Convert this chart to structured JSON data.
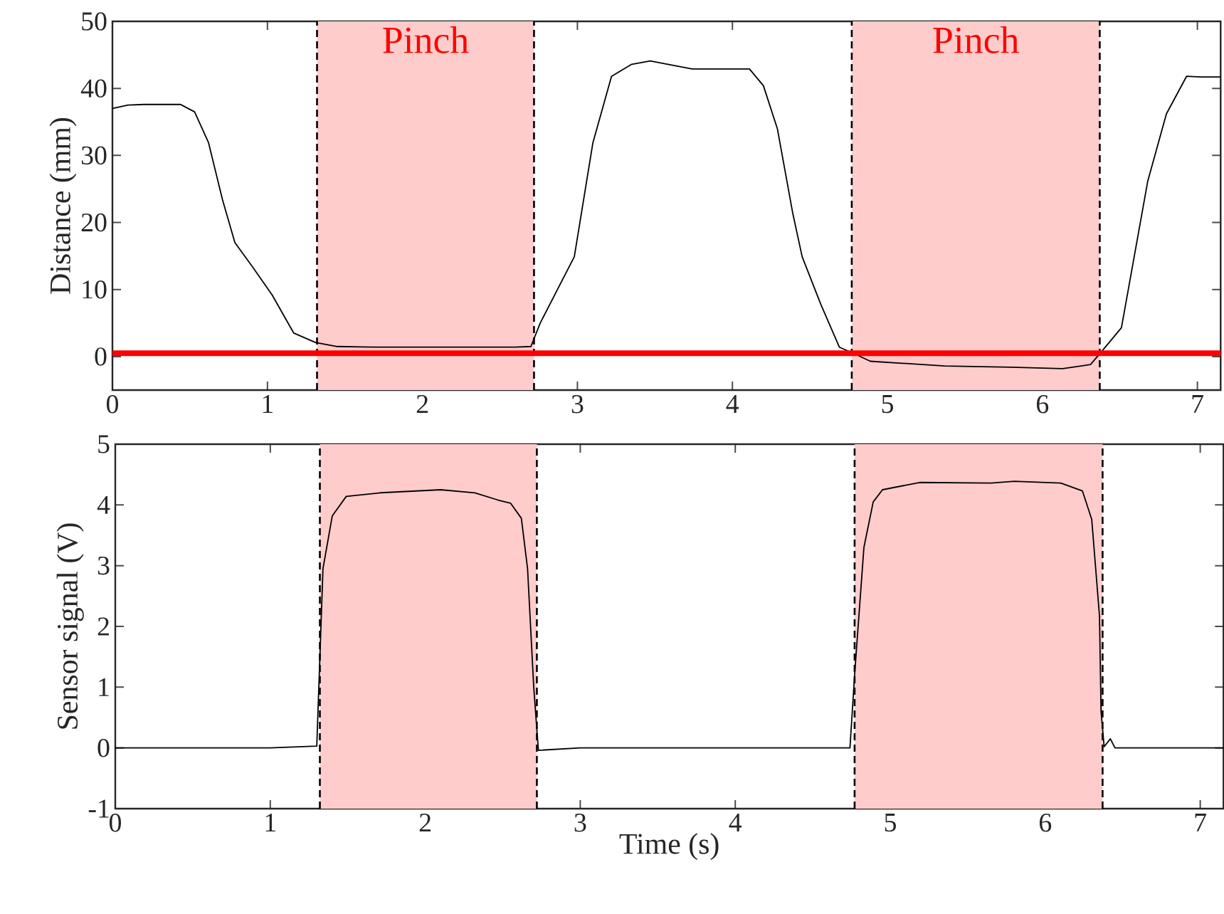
{
  "chart_data": [
    {
      "type": "line",
      "ylabel": "Distance (mm)",
      "xlim": [
        0,
        7.15
      ],
      "xticks": [
        0,
        1,
        2,
        3,
        4,
        5,
        6,
        7
      ],
      "ylim": [
        -5,
        50
      ],
      "yticks": [
        0,
        10,
        20,
        30,
        40,
        50
      ],
      "grid": false,
      "series": [
        {
          "color": "#000000",
          "x": [
            0,
            0.1,
            0.2,
            0.3,
            0.44,
            0.53,
            0.62,
            0.71,
            0.79,
            0.9,
            1.03,
            1.17,
            1.31,
            1.45,
            1.7,
            2.0,
            2.3,
            2.6,
            2.7,
            2.76,
            2.98,
            3.1,
            3.22,
            3.35,
            3.47,
            3.74,
            4.11,
            4.2,
            4.29,
            4.39,
            4.45,
            4.57,
            4.69,
            4.77,
            4.89,
            5.37,
            5.8,
            6.13,
            6.31,
            6.38,
            6.51,
            6.68,
            6.8,
            6.93,
            7.02,
            7.15
          ],
          "values": [
            37,
            37.5,
            37.6,
            37.6,
            37.6,
            36.5,
            31.9,
            23.4,
            17,
            13.5,
            9.2,
            3.5,
            2.1,
            1.5,
            1.4,
            1.4,
            1.4,
            1.4,
            1.5,
            5,
            14.9,
            31.9,
            41.8,
            43.6,
            44.1,
            42.9,
            42.9,
            40.4,
            34,
            21.3,
            14.9,
            7.8,
            1.4,
            0.6,
            -0.7,
            -1.4,
            -1.6,
            -1.8,
            -1.2,
            0.7,
            4.3,
            26.2,
            36.2,
            41.8,
            41.7,
            41.7
          ]
        }
      ],
      "ref_lines": [
        {
          "axis": "y",
          "value": 0.5,
          "color": "#ff0000"
        }
      ],
      "bands": [
        {
          "axis": "x",
          "from": 1.32,
          "to": 2.72,
          "label": "Pinch",
          "color": "#ffcccc"
        },
        {
          "axis": "x",
          "from": 4.77,
          "to": 6.37,
          "label": "Pinch",
          "color": "#ffcccc"
        }
      ]
    },
    {
      "type": "line",
      "xlabel": "Time (s)",
      "ylabel": "Sensor signal (V)",
      "xlim": [
        0,
        7.15
      ],
      "xticks": [
        0,
        1,
        2,
        3,
        4,
        5,
        6,
        7
      ],
      "ylim": [
        -1,
        5
      ],
      "yticks": [
        -1,
        0,
        1,
        2,
        3,
        4,
        5
      ],
      "grid": false,
      "series": [
        {
          "color": "#000000",
          "x": [
            0,
            0.5,
            1.0,
            1.3,
            1.34,
            1.4,
            1.49,
            1.71,
            2.1,
            2.32,
            2.47,
            2.55,
            2.62,
            2.66,
            2.7,
            2.73,
            3.0,
            3.5,
            4.0,
            4.5,
            4.74,
            4.77,
            4.83,
            4.89,
            4.95,
            5.19,
            5.65,
            5.8,
            6.1,
            6.24,
            6.3,
            6.35,
            6.36,
            6.38,
            6.42,
            6.45,
            6.8,
            7.15
          ],
          "values": [
            0,
            0,
            0,
            0.03,
            2.95,
            3.82,
            4.14,
            4.2,
            4.25,
            4.2,
            4.08,
            4.03,
            3.78,
            2.95,
            0.99,
            -0.04,
            0,
            0,
            0,
            0,
            0,
            1.2,
            3.3,
            4.05,
            4.25,
            4.37,
            4.36,
            4.39,
            4.36,
            4.23,
            3.76,
            2.17,
            0.6,
            0.02,
            0.15,
            0,
            0,
            0
          ]
        }
      ],
      "bands": [
        {
          "axis": "x",
          "from": 1.32,
          "to": 2.72,
          "color": "#ffcccc"
        },
        {
          "axis": "x",
          "from": 4.77,
          "to": 6.37,
          "color": "#ffcccc"
        }
      ]
    }
  ]
}
